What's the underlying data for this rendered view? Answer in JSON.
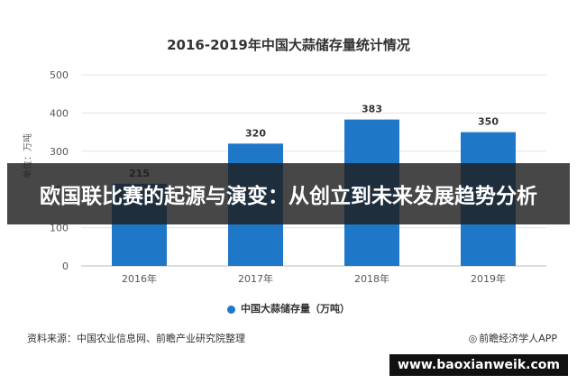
{
  "chart_data": {
    "type": "bar",
    "title": "2016-2019年中国大蒜储存量统计情况",
    "ylabel": "单位：万吨",
    "categories": [
      "2016年",
      "2017年",
      "2018年",
      "2019年"
    ],
    "series": [
      {
        "name": "中国大蒜储存量（万吨）",
        "values": [
          215,
          320,
          383,
          350
        ]
      }
    ],
    "ylim": [
      0,
      500
    ],
    "yticks": [
      0,
      100,
      200,
      300,
      400,
      500
    ],
    "grid": true,
    "legend": "bottom",
    "bar_color": "#1f77c8",
    "data_labels": true
  },
  "source_text": "资料来源：中国农业信息网、前瞻产业研究院整理",
  "brand_text": "前瞻经济学人APP",
  "banner_text": "欧国联比赛的起源与演变：从创立到未来发展趋势分析",
  "url_text": "www.baoxianweik.com"
}
